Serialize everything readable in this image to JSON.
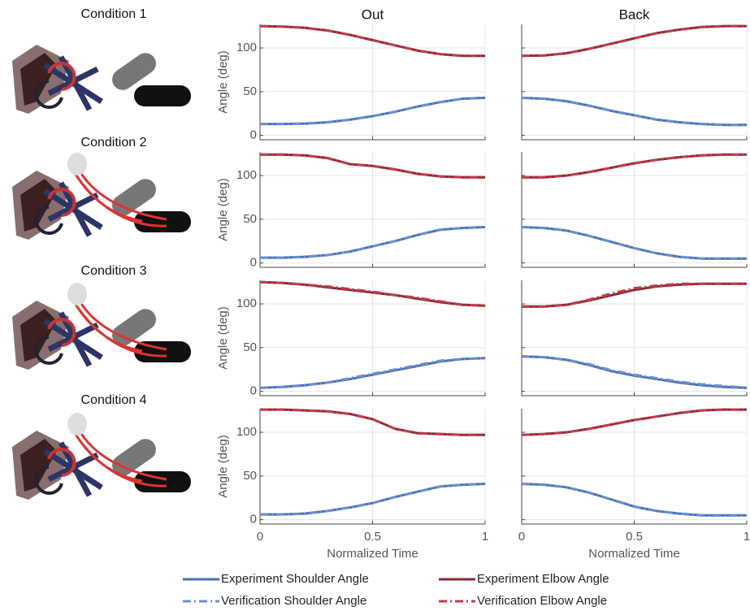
{
  "conditions": [
    "Condition 1",
    "Condition 2",
    "Condition 3",
    "Condition 4"
  ],
  "chart_data": [
    {
      "type": "line",
      "title": "Out",
      "ylabel": "Angle (deg)",
      "x": [
        0,
        0.1,
        0.2,
        0.3,
        0.4,
        0.5,
        0.6,
        0.7,
        0.8,
        0.9,
        1
      ],
      "xlim": [
        0,
        1
      ],
      "xticks": [
        0,
        0.5,
        1
      ],
      "ylim": [
        -5,
        127
      ],
      "yticks": [
        0,
        50,
        100
      ],
      "grid": true,
      "show_xtick_labels": false,
      "show_ytick_labels": true,
      "series": [
        {
          "name": "Experiment Shoulder Angle",
          "color": "#4a72b0",
          "dash": "solid",
          "values": [
            13,
            13,
            13.5,
            15,
            18,
            22,
            27,
            33,
            38,
            42,
            43
          ]
        },
        {
          "name": "Experiment Elbow Angle",
          "color": "#8b2a35",
          "dash": "solid",
          "values": [
            125,
            124.5,
            123,
            120,
            115,
            109,
            103,
            97,
            93,
            91,
            91
          ]
        },
        {
          "name": "Verification Shoulder Angle",
          "color": "#6a8fcf",
          "dash": "dashdot",
          "values": [
            13,
            13,
            13.5,
            15,
            18,
            22,
            27,
            33,
            38,
            42,
            43
          ]
        },
        {
          "name": "Verification Elbow Angle",
          "color": "#c23c4c",
          "dash": "dashdot",
          "values": [
            125,
            124.5,
            123,
            120,
            115,
            109,
            103,
            97,
            93,
            91,
            91
          ]
        }
      ]
    },
    {
      "type": "line",
      "title": "Back",
      "x": [
        0,
        0.1,
        0.2,
        0.3,
        0.4,
        0.5,
        0.6,
        0.7,
        0.8,
        0.9,
        1
      ],
      "xlim": [
        0,
        1
      ],
      "xticks": [
        0,
        0.5,
        1
      ],
      "ylim": [
        -5,
        127
      ],
      "yticks": [
        0,
        50,
        100
      ],
      "grid": true,
      "show_xtick_labels": false,
      "show_ytick_labels": false,
      "series": [
        {
          "name": "Experiment Shoulder Angle",
          "color": "#4a72b0",
          "dash": "solid",
          "values": [
            43,
            42,
            39,
            34,
            28,
            23,
            18,
            15,
            13,
            12,
            12
          ]
        },
        {
          "name": "Experiment Elbow Angle",
          "color": "#8b2a35",
          "dash": "solid",
          "values": [
            91,
            91.5,
            94,
            99,
            105,
            111,
            117,
            121,
            124,
            125,
            125
          ]
        },
        {
          "name": "Verification Shoulder Angle",
          "color": "#6a8fcf",
          "dash": "dashdot",
          "values": [
            43,
            42,
            39,
            34,
            28,
            23,
            18,
            15,
            13,
            12,
            12
          ]
        },
        {
          "name": "Verification Elbow Angle",
          "color": "#c23c4c",
          "dash": "dashdot",
          "values": [
            91,
            91.5,
            94,
            99,
            105,
            111,
            117,
            121,
            124,
            125,
            125
          ]
        }
      ]
    },
    {
      "type": "line",
      "ylabel": "Angle (deg)",
      "x": [
        0,
        0.1,
        0.2,
        0.3,
        0.4,
        0.5,
        0.6,
        0.7,
        0.8,
        0.9,
        1
      ],
      "xlim": [
        0,
        1
      ],
      "xticks": [
        0,
        0.5,
        1
      ],
      "ylim": [
        -5,
        127
      ],
      "yticks": [
        0,
        50,
        100
      ],
      "grid": true,
      "show_xtick_labels": false,
      "show_ytick_labels": true,
      "series": [
        {
          "name": "Experiment Shoulder Angle",
          "color": "#4a72b0",
          "dash": "solid",
          "values": [
            6,
            6,
            7,
            9,
            13,
            19,
            25,
            32,
            38,
            40,
            41
          ]
        },
        {
          "name": "Experiment Elbow Angle",
          "color": "#8b2a35",
          "dash": "solid",
          "values": [
            124,
            124,
            123,
            120,
            113,
            111,
            107,
            102,
            99,
            98,
            98
          ]
        },
        {
          "name": "Verification Shoulder Angle",
          "color": "#6a8fcf",
          "dash": "dashdot",
          "values": [
            6,
            6,
            7,
            9,
            13,
            19,
            25,
            32,
            38,
            40,
            41
          ]
        },
        {
          "name": "Verification Elbow Angle",
          "color": "#c23c4c",
          "dash": "dashdot",
          "values": [
            124,
            124,
            123,
            120,
            113,
            111,
            107,
            102,
            99,
            98,
            98
          ]
        }
      ]
    },
    {
      "type": "line",
      "x": [
        0,
        0.1,
        0.2,
        0.3,
        0.4,
        0.5,
        0.6,
        0.7,
        0.8,
        0.9,
        1
      ],
      "xlim": [
        0,
        1
      ],
      "xticks": [
        0,
        0.5,
        1
      ],
      "ylim": [
        -5,
        127
      ],
      "yticks": [
        0,
        50,
        100
      ],
      "grid": true,
      "show_xtick_labels": false,
      "show_ytick_labels": false,
      "series": [
        {
          "name": "Experiment Shoulder Angle",
          "color": "#4a72b0",
          "dash": "solid",
          "values": [
            41,
            40,
            37,
            31,
            24,
            17,
            11,
            7,
            5,
            5,
            5
          ]
        },
        {
          "name": "Experiment Elbow Angle",
          "color": "#8b2a35",
          "dash": "solid",
          "values": [
            98,
            98,
            100,
            104,
            109,
            114,
            118,
            121,
            123,
            124,
            124
          ]
        },
        {
          "name": "Verification Shoulder Angle",
          "color": "#6a8fcf",
          "dash": "dashdot",
          "values": [
            41,
            40,
            37,
            31,
            24,
            17,
            11,
            7,
            5,
            5,
            5
          ]
        },
        {
          "name": "Verification Elbow Angle",
          "color": "#c23c4c",
          "dash": "dashdot",
          "values": [
            98,
            98,
            100,
            104,
            109,
            114,
            118,
            121,
            123,
            124,
            124
          ]
        }
      ]
    },
    {
      "type": "line",
      "ylabel": "Angle (deg)",
      "x": [
        0,
        0.1,
        0.2,
        0.3,
        0.4,
        0.5,
        0.6,
        0.7,
        0.8,
        0.9,
        1
      ],
      "xlim": [
        0,
        1
      ],
      "xticks": [
        0,
        0.5,
        1
      ],
      "ylim": [
        -5,
        127
      ],
      "yticks": [
        0,
        50,
        100
      ],
      "grid": true,
      "show_xtick_labels": false,
      "show_ytick_labels": true,
      "series": [
        {
          "name": "Experiment Shoulder Angle",
          "color": "#4a72b0",
          "dash": "solid",
          "values": [
            4,
            5,
            7,
            10,
            14,
            19,
            24,
            29,
            34,
            37,
            38
          ]
        },
        {
          "name": "Experiment Elbow Angle",
          "color": "#8b2a35",
          "dash": "solid",
          "values": [
            125,
            124,
            122,
            119,
            116,
            113,
            110,
            106,
            102,
            99,
            98
          ]
        },
        {
          "name": "Verification Shoulder Angle",
          "color": "#6a8fcf",
          "dash": "dashdot",
          "values": [
            4,
            5,
            7,
            10,
            15,
            20,
            25,
            30,
            35,
            37,
            38
          ]
        },
        {
          "name": "Verification Elbow Angle",
          "color": "#c23c4c",
          "dash": "dashdot",
          "values": [
            125,
            124,
            122,
            120,
            117,
            114,
            110,
            107,
            103,
            99,
            98
          ]
        }
      ]
    },
    {
      "type": "line",
      "x": [
        0,
        0.1,
        0.2,
        0.3,
        0.4,
        0.5,
        0.6,
        0.7,
        0.8,
        0.9,
        1
      ],
      "xlim": [
        0,
        1
      ],
      "xticks": [
        0,
        0.5,
        1
      ],
      "ylim": [
        -5,
        127
      ],
      "yticks": [
        0,
        50,
        100
      ],
      "grid": true,
      "show_xtick_labels": false,
      "show_ytick_labels": false,
      "series": [
        {
          "name": "Experiment Shoulder Angle",
          "color": "#4a72b0",
          "dash": "solid",
          "values": [
            40,
            39,
            36,
            30,
            23,
            18,
            14,
            10,
            7,
            5,
            4
          ]
        },
        {
          "name": "Experiment Elbow Angle",
          "color": "#8b2a35",
          "dash": "solid",
          "values": [
            97,
            97,
            99,
            104,
            110,
            116,
            120,
            122,
            123,
            123,
            123
          ]
        },
        {
          "name": "Verification Shoulder Angle",
          "color": "#6a8fcf",
          "dash": "dashdot",
          "values": [
            40,
            39,
            36,
            31,
            24,
            19,
            15,
            11,
            8,
            6,
            4
          ]
        },
        {
          "name": "Verification Elbow Angle",
          "color": "#c23c4c",
          "dash": "dashdot",
          "values": [
            97,
            97,
            99,
            105,
            112,
            118,
            121,
            123,
            123,
            123,
            123
          ]
        }
      ]
    },
    {
      "type": "line",
      "ylabel": "Angle (deg)",
      "xlabel": "Normalized Time",
      "x": [
        0,
        0.1,
        0.2,
        0.3,
        0.4,
        0.5,
        0.6,
        0.7,
        0.8,
        0.9,
        1
      ],
      "xlim": [
        0,
        1
      ],
      "xticks": [
        0,
        0.5,
        1
      ],
      "ylim": [
        -5,
        127
      ],
      "yticks": [
        0,
        50,
        100
      ],
      "grid": true,
      "show_xtick_labels": true,
      "show_ytick_labels": true,
      "series": [
        {
          "name": "Experiment Shoulder Angle",
          "color": "#4a72b0",
          "dash": "solid",
          "values": [
            6,
            6,
            7,
            10,
            14,
            19,
            26,
            32,
            38,
            40,
            41
          ]
        },
        {
          "name": "Experiment Elbow Angle",
          "color": "#8b2a35",
          "dash": "solid",
          "values": [
            126,
            126,
            125,
            124,
            121,
            115,
            104,
            99,
            98,
            97,
            97
          ]
        },
        {
          "name": "Verification Shoulder Angle",
          "color": "#6a8fcf",
          "dash": "dashdot",
          "values": [
            6,
            6,
            7,
            10,
            14,
            19,
            26,
            32,
            38,
            40,
            41
          ]
        },
        {
          "name": "Verification Elbow Angle",
          "color": "#c23c4c",
          "dash": "dashdot",
          "values": [
            126,
            126,
            125,
            124,
            121,
            115,
            104,
            99,
            98,
            97,
            97
          ]
        }
      ]
    },
    {
      "type": "line",
      "xlabel": "Normalized Time",
      "x": [
        0,
        0.1,
        0.2,
        0.3,
        0.4,
        0.5,
        0.6,
        0.7,
        0.8,
        0.9,
        1
      ],
      "xlim": [
        0,
        1
      ],
      "xticks": [
        0,
        0.5,
        1
      ],
      "ylim": [
        -5,
        127
      ],
      "yticks": [
        0,
        50,
        100
      ],
      "grid": true,
      "show_xtick_labels": true,
      "show_ytick_labels": false,
      "series": [
        {
          "name": "Experiment Shoulder Angle",
          "color": "#4a72b0",
          "dash": "solid",
          "values": [
            41,
            40,
            37,
            31,
            23,
            15,
            10,
            7,
            5,
            5,
            5
          ]
        },
        {
          "name": "Experiment Elbow Angle",
          "color": "#8b2a35",
          "dash": "solid",
          "values": [
            97,
            98,
            100,
            104,
            109,
            114,
            118,
            122,
            125,
            126,
            126
          ]
        },
        {
          "name": "Verification Shoulder Angle",
          "color": "#6a8fcf",
          "dash": "dashdot",
          "values": [
            41,
            40,
            37,
            31,
            23,
            15,
            10,
            7,
            5,
            5,
            5
          ]
        },
        {
          "name": "Verification Elbow Angle",
          "color": "#c23c4c",
          "dash": "dashdot",
          "values": [
            97,
            98,
            100,
            104,
            109,
            114,
            118,
            122,
            125,
            126,
            126
          ]
        }
      ]
    }
  ]
}
